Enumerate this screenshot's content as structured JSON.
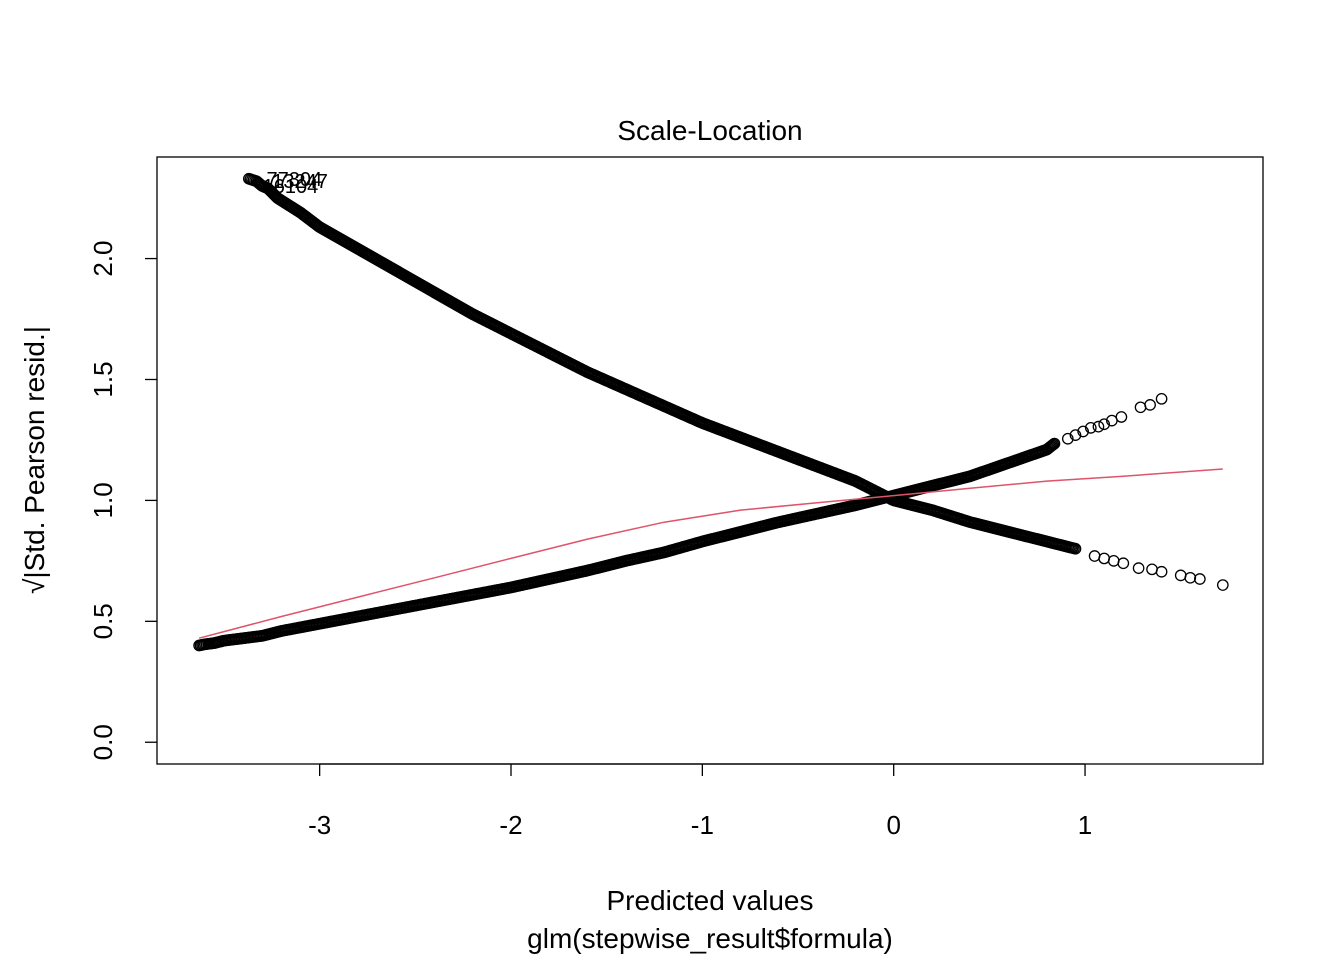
{
  "chart_data": {
    "type": "scatter",
    "title": "Scale-Location",
    "xlabel": "Predicted values",
    "sublabel": "glm(stepwise_result$formula)",
    "ylabel": "√|Std. Pearson resid.|",
    "xlim": [
      -3.85,
      1.93
    ],
    "ylim": [
      -0.09,
      2.42
    ],
    "x_ticks": [
      -3,
      -2,
      -1,
      0,
      1
    ],
    "y_ticks": [
      0.0,
      0.5,
      1.0,
      1.5,
      2.0
    ],
    "x_tick_labels": [
      "-3",
      "-2",
      "-1",
      "0",
      "1"
    ],
    "y_tick_labels": [
      "0.0",
      "0.5",
      "1.0",
      "1.5",
      "2.0"
    ],
    "grid": false,
    "colors": {
      "points": "#000000",
      "smooth": "#DF536B",
      "frame": "#000000"
    },
    "series": [
      {
        "values_note": "rising branch",
        "x": [
          -3.63,
          -3.6,
          -3.55,
          -3.5,
          -3.4,
          -3.3,
          -3.2,
          -3.0,
          -2.8,
          -2.6,
          -2.4,
          -2.2,
          -2.0,
          -1.8,
          -1.6,
          -1.4,
          -1.2,
          -1.0,
          -0.8,
          -0.6,
          -0.4,
          -0.2,
          0.0,
          0.2,
          0.4,
          0.6,
          0.8,
          0.84,
          0.91,
          0.95,
          0.99,
          1.03,
          1.07,
          1.1,
          1.14,
          1.19,
          1.29,
          1.34,
          1.4
        ],
        "y": [
          0.4,
          0.405,
          0.41,
          0.42,
          0.43,
          0.44,
          0.46,
          0.49,
          0.52,
          0.55,
          0.58,
          0.61,
          0.64,
          0.675,
          0.71,
          0.75,
          0.785,
          0.83,
          0.87,
          0.91,
          0.945,
          0.98,
          1.02,
          1.06,
          1.1,
          1.155,
          1.21,
          1.235,
          1.255,
          1.27,
          1.285,
          1.3,
          1.305,
          1.315,
          1.33,
          1.345,
          1.385,
          1.395,
          1.42
        ]
      },
      {
        "values_note": "falling branch",
        "x": [
          -3.37,
          -3.33,
          -3.3,
          -3.27,
          -3.22,
          -3.1,
          -3.0,
          -2.8,
          -2.6,
          -2.4,
          -2.2,
          -2.0,
          -1.8,
          -1.6,
          -1.4,
          -1.2,
          -1.0,
          -0.8,
          -0.6,
          -0.4,
          -0.2,
          0.0,
          0.2,
          0.4,
          0.6,
          0.8,
          0.95,
          1.05,
          1.1,
          1.15,
          1.2,
          1.28,
          1.35,
          1.4,
          1.5,
          1.55,
          1.6,
          1.72
        ],
        "y": [
          2.33,
          2.32,
          2.3,
          2.29,
          2.25,
          2.19,
          2.13,
          2.04,
          1.95,
          1.86,
          1.77,
          1.69,
          1.61,
          1.53,
          1.46,
          1.39,
          1.32,
          1.26,
          1.2,
          1.14,
          1.08,
          1.0,
          0.96,
          0.91,
          0.87,
          0.83,
          0.8,
          0.77,
          0.76,
          0.75,
          0.74,
          0.72,
          0.715,
          0.705,
          0.69,
          0.68,
          0.675,
          0.65
        ]
      }
    ],
    "smooth": {
      "x": [
        -3.63,
        -3.2,
        -2.8,
        -2.4,
        -2.0,
        -1.6,
        -1.2,
        -0.8,
        -0.4,
        0.0,
        0.4,
        0.8,
        1.2,
        1.72
      ],
      "y": [
        0.43,
        0.52,
        0.6,
        0.68,
        0.76,
        0.84,
        0.91,
        0.96,
        0.99,
        1.02,
        1.05,
        1.08,
        1.1,
        1.13
      ]
    },
    "point_labels": [
      {
        "text": "77304",
        "x": -3.33,
        "y": 2.33
      },
      {
        "text": "13247",
        "x": -3.3,
        "y": 2.32
      },
      {
        "text": "16104",
        "x": -3.35,
        "y": 2.3
      }
    ]
  }
}
